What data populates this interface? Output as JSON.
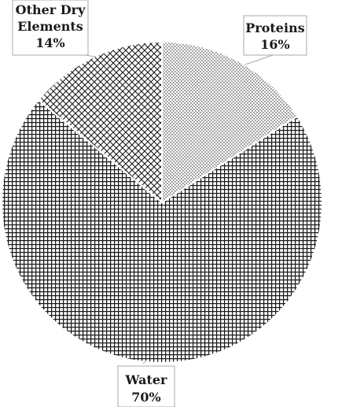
{
  "chart_data": {
    "type": "pie",
    "start_angle_deg_clockwise_from_top": 0,
    "slices": [
      {
        "name": "Proteins",
        "value": 16,
        "label": "16%",
        "pattern": "dots"
      },
      {
        "name": "Water",
        "value": 70,
        "label": "70%",
        "pattern": "dense-grid"
      },
      {
        "name": "Other Dry Elements",
        "value": 14,
        "label": "14%",
        "pattern": "crosshatch"
      }
    ],
    "legend": "none",
    "callout_labels": true
  },
  "colors": {
    "ink": "#1a1a1a",
    "background": "#ffffff",
    "label_box_border": "#aaaaaa"
  }
}
